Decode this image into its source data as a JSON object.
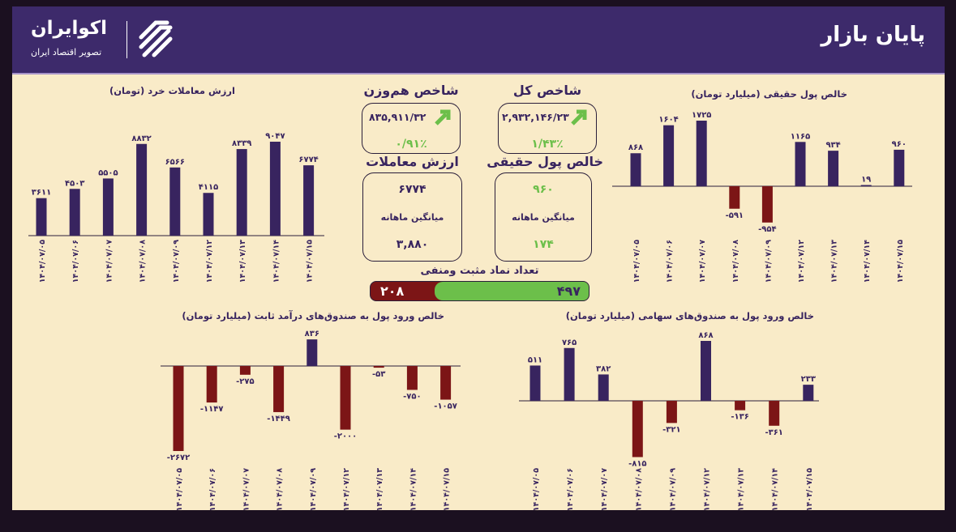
{
  "header": {
    "title": "پایان بازار",
    "logo_name": "اکوایران",
    "logo_tagline": "تصویر اقتصاد ایران"
  },
  "colors": {
    "header": "#3d2a6b",
    "background": "#f9ebc8",
    "positive": "#38245f",
    "negative": "#7c1516",
    "green": "#6cbf4a"
  },
  "summary": {
    "total_index": {
      "title": "شاخص کل",
      "value": "۲,۹۳۲,۱۴۶/۲۳",
      "change": "۱/۴۳٪",
      "trend_icon": "arrow-up-right-icon"
    },
    "equal_weight_index": {
      "title": "شاخص هم‌وزن",
      "value": "۸۳۵,۹۱۱/۳۲",
      "change": "۰/۹۱٪",
      "trend_icon": "arrow-up-right-icon"
    },
    "net_real_money": {
      "title": "خالص پول حقیقی",
      "value": "۹۶۰",
      "avg_label": "میانگین ماهانه",
      "avg_value": "۱۷۴"
    },
    "trade_value": {
      "title": "ارزش معاملات",
      "value": "۶۷۷۴",
      "avg_label": "میانگین ماهانه",
      "avg_value": "۳,۸۸۰"
    },
    "symbols_count": {
      "title": "تعداد نماد مثبت ومنفی",
      "positive": 497,
      "negative": 208
    }
  },
  "chart_data": [
    {
      "type": "bar",
      "title": "ارزش معاملات خرد (تومان)",
      "categories": [
        "۱۴۰۴/۰۷/۰۵",
        "۱۴۰۴/۰۷/۰۶",
        "۱۴۰۴/۰۷/۰۷",
        "۱۴۰۴/۰۷/۰۸",
        "۱۴۰۴/۰۷/۰۹",
        "۱۴۰۴/۰۷/۱۲",
        "۱۴۰۴/۰۷/۱۳",
        "۱۴۰۴/۰۷/۱۴",
        "۱۴۰۴/۰۷/۱۵"
      ],
      "values": [
        3611,
        4503,
        5505,
        8832,
        6566,
        4115,
        8339,
        9047,
        6774
      ]
    },
    {
      "type": "bar",
      "title": "خالص پول حقیقی (میلیارد تومان)",
      "categories": [
        "۱۴۰۴/۰۷/۰۵",
        "۱۴۰۴/۰۷/۰۶",
        "۱۴۰۴/۰۷/۰۷",
        "۱۴۰۴/۰۷/۰۸",
        "۱۴۰۴/۰۷/۰۹",
        "۱۴۰۴/۰۷/۱۲",
        "۱۴۰۴/۰۷/۱۳",
        "۱۴۰۴/۰۷/۱۴",
        "۱۴۰۴/۰۷/۱۵"
      ],
      "values": [
        868,
        1604,
        1725,
        -591,
        -954,
        1165,
        934,
        19,
        960
      ]
    },
    {
      "type": "bar",
      "title": "خالص ورود پول به صندوق‌های درآمد ثابت (میلیارد تومان)",
      "categories": [
        "۱۴۰۴/۰۷/۰۵",
        "۱۴۰۴/۰۷/۰۶",
        "۱۴۰۴/۰۷/۰۷",
        "۱۴۰۴/۰۷/۰۸",
        "۱۴۰۴/۰۷/۰۹",
        "۱۴۰۴/۰۷/۱۲",
        "۱۴۰۴/۰۷/۱۳",
        "۱۴۰۴/۰۷/۱۴",
        "۱۴۰۴/۰۷/۱۵"
      ],
      "values": [
        -2672,
        -1147,
        -275,
        -1449,
        836,
        -2000,
        -53,
        -750,
        -1057
      ]
    },
    {
      "type": "bar",
      "title": "خالص ورود پول به صندوق‌های سهامی (میلیارد تومان)",
      "categories": [
        "۱۴۰۴/۰۷/۰۵",
        "۱۴۰۴/۰۷/۰۶",
        "۱۴۰۴/۰۷/۰۷",
        "۱۴۰۴/۰۷/۰۸",
        "۱۴۰۴/۰۷/۰۹",
        "۱۴۰۴/۰۷/۱۲",
        "۱۴۰۴/۰۷/۱۳",
        "۱۴۰۴/۰۷/۱۴",
        "۱۴۰۴/۰۷/۱۵"
      ],
      "values": [
        511,
        765,
        382,
        -815,
        -321,
        868,
        -136,
        -361,
        233
      ]
    }
  ]
}
